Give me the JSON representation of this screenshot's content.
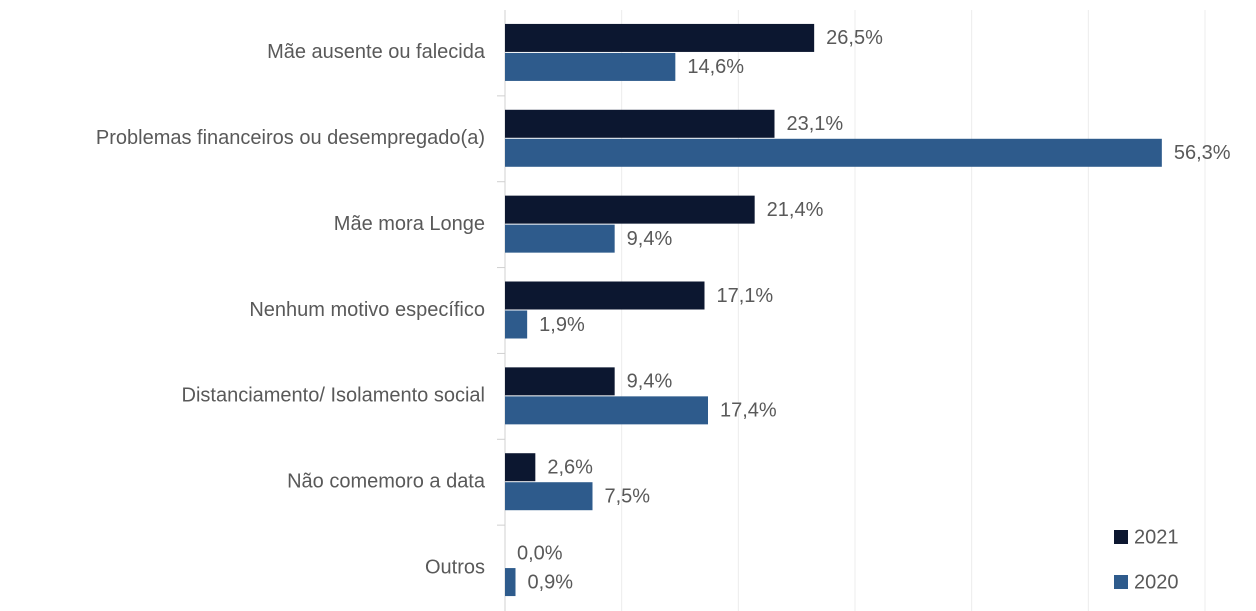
{
  "chart_data": {
    "type": "hbar",
    "categories": [
      "Mãe ausente ou falecida",
      "Problemas financeiros ou desempregado(a)",
      "Mãe mora Longe",
      "Nenhum motivo específico",
      "Distanciamento/ Isolamento social",
      "Não comemoro a data",
      "Outros"
    ],
    "series": [
      {
        "name": "2021",
        "color": "#0c1730",
        "values": [
          26.5,
          23.1,
          21.4,
          17.1,
          9.4,
          2.6,
          0.0
        ],
        "value_labels": [
          "26,5%",
          "23,1%",
          "21,4%",
          "17,1%",
          "9,4%",
          "2,6%",
          "0,0%"
        ]
      },
      {
        "name": "2020",
        "color": "#2e5b8c",
        "values": [
          14.6,
          56.3,
          9.4,
          1.9,
          17.4,
          7.5,
          0.9
        ],
        "value_labels": [
          "14,6%",
          "56,3%",
          "9,4%",
          "1,9%",
          "17,4%",
          "7,5%",
          "0,9%"
        ]
      }
    ],
    "xlim": [
      0,
      60
    ],
    "xticks": [
      0,
      10,
      20,
      30,
      40,
      50,
      60
    ],
    "tick_labels": false,
    "grid": true,
    "legend": "bottom-right"
  }
}
